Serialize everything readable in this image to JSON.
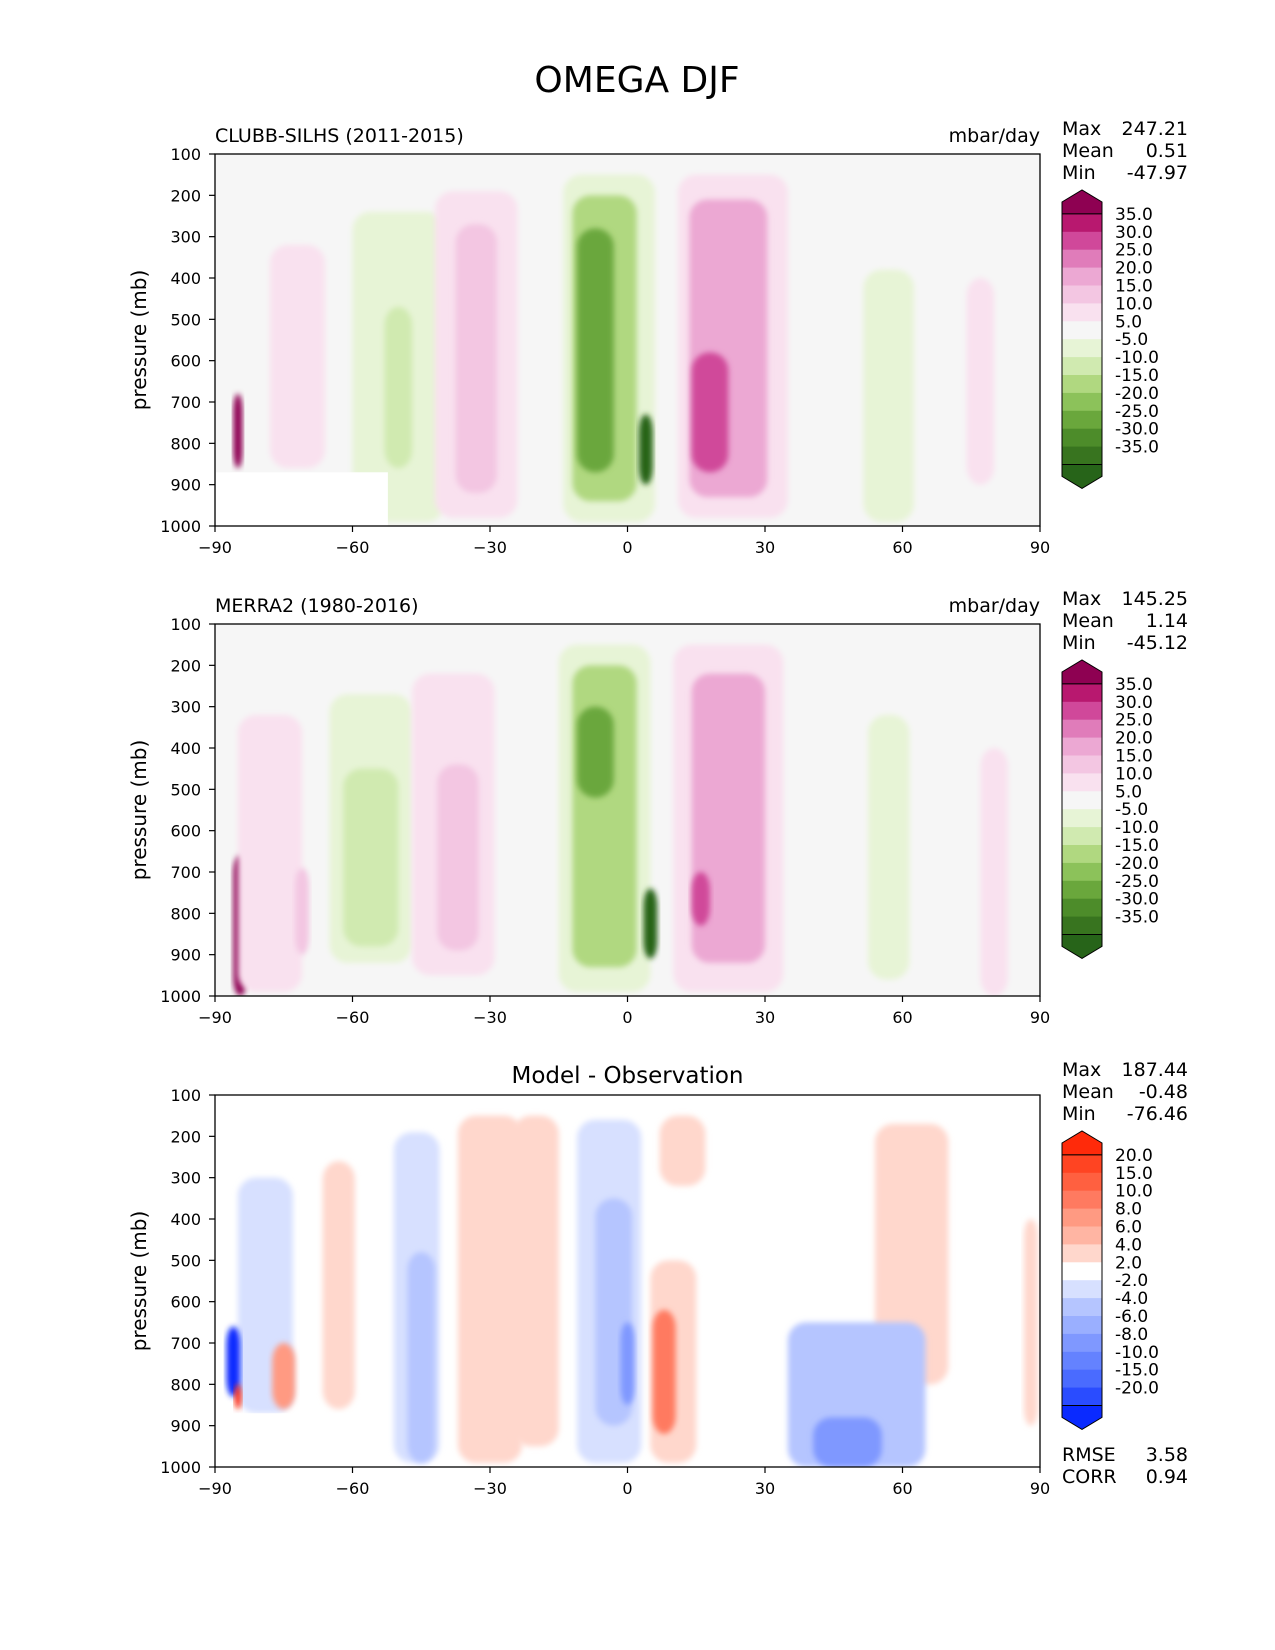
{
  "title": "OMEGA DJF",
  "chart_data": [
    {
      "type": "heatmap",
      "title": "CLUBB-SILHS (2011-2015)",
      "units": "mbar/day",
      "xlabel": "",
      "ylabel": "pressure (mb)",
      "xlim": [
        -90,
        90
      ],
      "ylim": [
        1000,
        100
      ],
      "x_ticks": [
        "−90",
        "−60",
        "−30",
        "0",
        "30",
        "60",
        "90"
      ],
      "y_ticks": [
        "100",
        "200",
        "300",
        "400",
        "500",
        "600",
        "700",
        "800",
        "900",
        "1000"
      ],
      "stats": [
        {
          "label": "Max",
          "value": "247.21"
        },
        {
          "label": "Mean",
          "value": "0.51"
        },
        {
          "label": "Min",
          "value": "-47.97"
        }
      ],
      "colorbar_levels": [
        "35.0",
        "30.0",
        "25.0",
        "20.0",
        "15.0",
        "10.0",
        "5.0",
        "-5.0",
        "-10.0",
        "-15.0",
        "-20.0",
        "-25.0",
        "-30.0",
        "-35.0"
      ],
      "colorbar_colors": [
        "#8e0152",
        "#b8186f",
        "#d0489a",
        "#e07cba",
        "#eca8d3",
        "#f3c6e2",
        "#f9e1ef",
        "#f6f6f6",
        "#e7f4d6",
        "#d0eab0",
        "#b0d880",
        "#8cc25a",
        "#6aa73c",
        "#4d8c2a",
        "#38741f",
        "#276419"
      ],
      "features": [
        {
          "lat": -85.0,
          "lat_width": 2,
          "p_top": 680,
          "p_bottom": 860,
          "value": 40
        },
        {
          "lat": -72.0,
          "lat_width": 12,
          "p_top": 320,
          "p_bottom": 860,
          "value": 6
        },
        {
          "lat": -50.0,
          "lat_width": 20,
          "p_top": 240,
          "p_bottom": 990,
          "value": -6
        },
        {
          "lat": -50.0,
          "lat_width": 6,
          "p_top": 470,
          "p_bottom": 860,
          "value": -13
        },
        {
          "lat": -33.0,
          "lat_width": 18,
          "p_top": 190,
          "p_bottom": 980,
          "value": 6
        },
        {
          "lat": -33.0,
          "lat_width": 9,
          "p_top": 270,
          "p_bottom": 920,
          "value": 11
        },
        {
          "lat": -4.0,
          "lat_width": 20,
          "p_top": 150,
          "p_bottom": 990,
          "value": -8
        },
        {
          "lat": -5.0,
          "lat_width": 14,
          "p_top": 200,
          "p_bottom": 940,
          "value": -18
        },
        {
          "lat": -7.0,
          "lat_width": 8,
          "p_top": 280,
          "p_bottom": 870,
          "value": -27
        },
        {
          "lat": 4.0,
          "lat_width": 3,
          "p_top": 730,
          "p_bottom": 900,
          "value": -36
        },
        {
          "lat": 23.0,
          "lat_width": 24,
          "p_top": 150,
          "p_bottom": 980,
          "value": 8
        },
        {
          "lat": 22.0,
          "lat_width": 17,
          "p_top": 210,
          "p_bottom": 930,
          "value": 18
        },
        {
          "lat": 18.0,
          "lat_width": 8,
          "p_top": 580,
          "p_bottom": 870,
          "value": 28
        },
        {
          "lat": 57.0,
          "lat_width": 11,
          "p_top": 380,
          "p_bottom": 990,
          "value": -7
        },
        {
          "lat": 77.0,
          "lat_width": 6,
          "p_top": 400,
          "p_bottom": 900,
          "value": 6
        }
      ],
      "masked_region": {
        "lat_min": -90,
        "lat_max": -52.5,
        "p_top": 870,
        "p_bottom": 1000
      }
    },
    {
      "type": "heatmap",
      "title": "MERRA2 (1980-2016)",
      "units": "mbar/day",
      "xlabel": "",
      "ylabel": "pressure (mb)",
      "xlim": [
        -90,
        90
      ],
      "ylim": [
        1000,
        100
      ],
      "x_ticks": [
        "−90",
        "−60",
        "−30",
        "0",
        "30",
        "60",
        "90"
      ],
      "y_ticks": [
        "100",
        "200",
        "300",
        "400",
        "500",
        "600",
        "700",
        "800",
        "900",
        "1000"
      ],
      "stats": [
        {
          "label": "Max",
          "value": "145.25"
        },
        {
          "label": "Mean",
          "value": "1.14"
        },
        {
          "label": "Min",
          "value": "-45.12"
        }
      ],
      "colorbar_levels": [
        "35.0",
        "30.0",
        "25.0",
        "20.0",
        "15.0",
        "10.0",
        "5.0",
        "-5.0",
        "-10.0",
        "-15.0",
        "-20.0",
        "-25.0",
        "-30.0",
        "-35.0"
      ],
      "colorbar_colors": [
        "#8e0152",
        "#b8186f",
        "#d0489a",
        "#e07cba",
        "#eca8d3",
        "#f3c6e2",
        "#f9e1ef",
        "#f6f6f6",
        "#e7f4d6",
        "#d0eab0",
        "#b0d880",
        "#8cc25a",
        "#6aa73c",
        "#4d8c2a",
        "#38741f",
        "#276419"
      ],
      "features": [
        {
          "lat": -84.5,
          "lat_width": 3,
          "p_top": 660,
          "p_bottom": 1000,
          "value": 38
        },
        {
          "lat": -78.0,
          "lat_width": 14,
          "p_top": 320,
          "p_bottom": 990,
          "value": 6
        },
        {
          "lat": -71.0,
          "lat_width": 3,
          "p_top": 690,
          "p_bottom": 900,
          "value": 15
        },
        {
          "lat": -56.0,
          "lat_width": 18,
          "p_top": 270,
          "p_bottom": 920,
          "value": -6
        },
        {
          "lat": -56.0,
          "lat_width": 12,
          "p_top": 450,
          "p_bottom": 880,
          "value": -12
        },
        {
          "lat": -38.0,
          "lat_width": 18,
          "p_top": 220,
          "p_bottom": 950,
          "value": 6
        },
        {
          "lat": -37.0,
          "lat_width": 9,
          "p_top": 440,
          "p_bottom": 890,
          "value": 11
        },
        {
          "lat": -5.0,
          "lat_width": 20,
          "p_top": 150,
          "p_bottom": 990,
          "value": -8
        },
        {
          "lat": -5.0,
          "lat_width": 14,
          "p_top": 200,
          "p_bottom": 930,
          "value": -18
        },
        {
          "lat": -7.0,
          "lat_width": 8,
          "p_top": 300,
          "p_bottom": 520,
          "value": -27
        },
        {
          "lat": 5.0,
          "lat_width": 3,
          "p_top": 740,
          "p_bottom": 910,
          "value": -36
        },
        {
          "lat": 22.0,
          "lat_width": 24,
          "p_top": 150,
          "p_bottom": 990,
          "value": 8
        },
        {
          "lat": 22.0,
          "lat_width": 16,
          "p_top": 220,
          "p_bottom": 920,
          "value": 18
        },
        {
          "lat": 16.0,
          "lat_width": 4,
          "p_top": 700,
          "p_bottom": 830,
          "value": 28
        },
        {
          "lat": 57.0,
          "lat_width": 9,
          "p_top": 320,
          "p_bottom": 960,
          "value": -7
        },
        {
          "lat": 80.0,
          "lat_width": 6,
          "p_top": 400,
          "p_bottom": 1000,
          "value": 6
        }
      ],
      "masked_region": null
    },
    {
      "type": "heatmap",
      "title": "Model - Observation",
      "units": "",
      "xlabel": "",
      "ylabel": "pressure (mb)",
      "xlim": [
        -90,
        90
      ],
      "ylim": [
        1000,
        100
      ],
      "x_ticks": [
        "−90",
        "−60",
        "−30",
        "0",
        "30",
        "60",
        "90"
      ],
      "y_ticks": [
        "100",
        "200",
        "300",
        "400",
        "500",
        "600",
        "700",
        "800",
        "900",
        "1000"
      ],
      "stats": [
        {
          "label": "Max",
          "value": "187.44"
        },
        {
          "label": "Mean",
          "value": "-0.48"
        },
        {
          "label": "Min",
          "value": "-76.46"
        }
      ],
      "extra_stats": [
        {
          "label": "RMSE",
          "value": "3.58"
        },
        {
          "label": "CORR",
          "value": "0.94"
        }
      ],
      "colorbar_levels": [
        "20.0",
        "15.0",
        "10.0",
        "8.0",
        "6.0",
        "4.0",
        "2.0",
        "-2.0",
        "-4.0",
        "-6.0",
        "-8.0",
        "-10.0",
        "-15.0",
        "-20.0"
      ],
      "colorbar_colors": [
        "#ff2a0a",
        "#ff4422",
        "#ff6040",
        "#ff7a60",
        "#ff9a82",
        "#ffb5a3",
        "#ffd7cc",
        "#ffffff",
        "#d7e0ff",
        "#b5c5ff",
        "#9aafff",
        "#7f98ff",
        "#6482ff",
        "#4a6bff",
        "#2a4cff",
        "#0a2aff"
      ],
      "features": [
        {
          "lat": -79.0,
          "lat_width": 12,
          "p_top": 300,
          "p_bottom": 870,
          "value": -3
        },
        {
          "lat": -86.0,
          "lat_width": 3,
          "p_top": 660,
          "p_bottom": 830,
          "value": -22
        },
        {
          "lat": -85.0,
          "lat_width": 1.5,
          "p_top": 800,
          "p_bottom": 860,
          "value": 22
        },
        {
          "lat": -75.0,
          "lat_width": 5,
          "p_top": 700,
          "p_bottom": 860,
          "value": 7
        },
        {
          "lat": -63.0,
          "lat_width": 7,
          "p_top": 260,
          "p_bottom": 860,
          "value": 3
        },
        {
          "lat": -46.0,
          "lat_width": 10,
          "p_top": 190,
          "p_bottom": 990,
          "value": -3
        },
        {
          "lat": -45.0,
          "lat_width": 6,
          "p_top": 480,
          "p_bottom": 990,
          "value": -5
        },
        {
          "lat": -30.0,
          "lat_width": 14,
          "p_top": 150,
          "p_bottom": 990,
          "value": 3
        },
        {
          "lat": -20.0,
          "lat_width": 10,
          "p_top": 150,
          "p_bottom": 950,
          "value": 3
        },
        {
          "lat": -4.0,
          "lat_width": 14,
          "p_top": 160,
          "p_bottom": 990,
          "value": -3
        },
        {
          "lat": -3.0,
          "lat_width": 8,
          "p_top": 350,
          "p_bottom": 900,
          "value": -5
        },
        {
          "lat": 0.0,
          "lat_width": 3,
          "p_top": 650,
          "p_bottom": 850,
          "value": -9
        },
        {
          "lat": 10.0,
          "lat_width": 10,
          "p_top": 500,
          "p_bottom": 990,
          "value": 4
        },
        {
          "lat": 8.0,
          "lat_width": 5,
          "p_top": 620,
          "p_bottom": 920,
          "value": 10
        },
        {
          "lat": 12.0,
          "lat_width": 10,
          "p_top": 150,
          "p_bottom": 320,
          "value": 3
        },
        {
          "lat": 62.0,
          "lat_width": 16,
          "p_top": 170,
          "p_bottom": 800,
          "value": 3
        },
        {
          "lat": 50.0,
          "lat_width": 30,
          "p_top": 650,
          "p_bottom": 1000,
          "value": -5
        },
        {
          "lat": 48.0,
          "lat_width": 15,
          "p_top": 880,
          "p_bottom": 1000,
          "value": -9
        },
        {
          "lat": 88.0,
          "lat_width": 3,
          "p_top": 400,
          "p_bottom": 900,
          "value": 3
        }
      ],
      "masked_region": {
        "lat_min": -90,
        "lat_max": -52.5,
        "p_top": 870,
        "p_bottom": 1000
      }
    }
  ]
}
